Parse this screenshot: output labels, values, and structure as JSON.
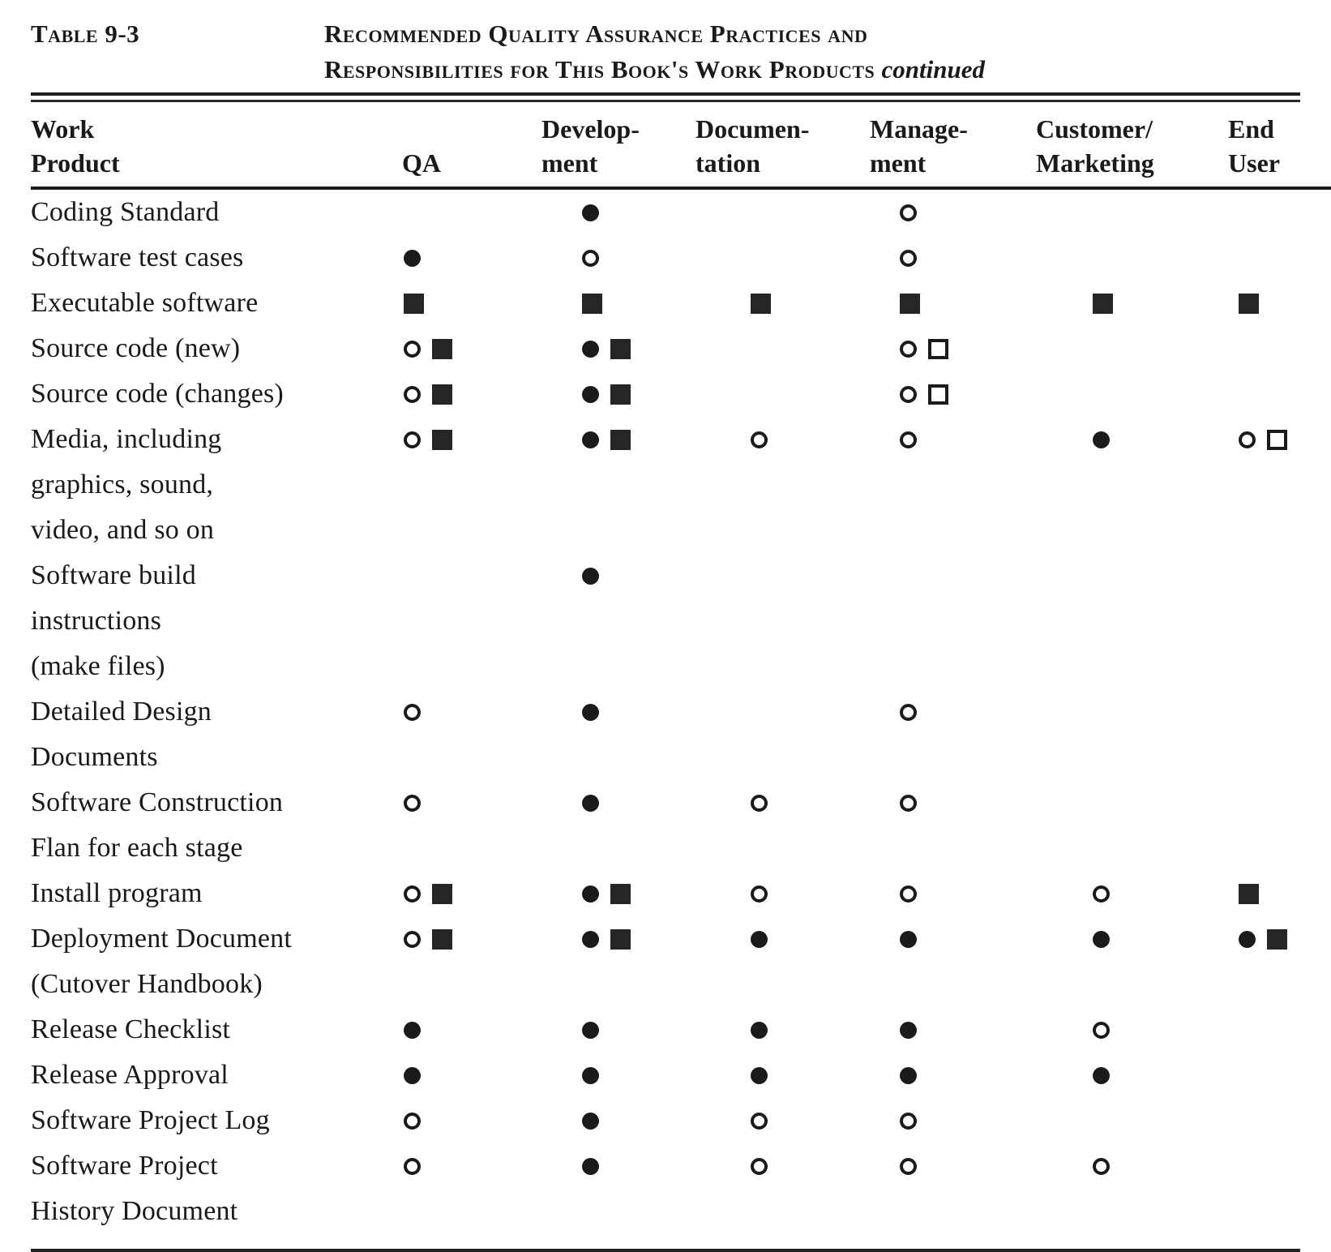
{
  "colors": {
    "ink": "#1a1a1a",
    "paper": "#ffffff"
  },
  "title": {
    "table_label": "Table 9-3",
    "line1": "Recommended Quality Assurance Practices and",
    "line2": "Responsibilities for This Book's Work Products",
    "continued": "continued"
  },
  "columns": [
    {
      "id": "work_product",
      "lines": [
        "Work",
        "Product"
      ]
    },
    {
      "id": "qa",
      "lines": [
        "QA"
      ]
    },
    {
      "id": "development",
      "lines": [
        "Develop-",
        "ment"
      ]
    },
    {
      "id": "documentation",
      "lines": [
        "Documen-",
        "tation"
      ]
    },
    {
      "id": "management",
      "lines": [
        "Manage-",
        "ment"
      ]
    },
    {
      "id": "customer_marketing",
      "lines": [
        "Customer/",
        "Marketing"
      ]
    },
    {
      "id": "end_user",
      "lines": [
        "End",
        "User"
      ]
    }
  ],
  "symbols": {
    "filled-circle": "black dot",
    "open-circle": "open circle",
    "filled-square": "black square",
    "open-square": "open square"
  },
  "rows": [
    {
      "product_lines": [
        "Coding Standard"
      ],
      "cells": [
        [],
        [
          "filled-circle"
        ],
        [],
        [
          "open-circle"
        ],
        [],
        []
      ]
    },
    {
      "product_lines": [
        "Software test cases"
      ],
      "cells": [
        [
          "filled-circle"
        ],
        [
          "open-circle"
        ],
        [],
        [
          "open-circle"
        ],
        [],
        []
      ]
    },
    {
      "product_lines": [
        "Executable software"
      ],
      "cells": [
        [
          "filled-square"
        ],
        [
          "filled-square"
        ],
        [
          "filled-square"
        ],
        [
          "filled-square"
        ],
        [
          "filled-square"
        ],
        [
          "filled-square"
        ]
      ]
    },
    {
      "product_lines": [
        "Source code (new)"
      ],
      "cells": [
        [
          "open-circle",
          "filled-square"
        ],
        [
          "filled-circle",
          "filled-square"
        ],
        [],
        [
          "open-circle",
          "open-square"
        ],
        [],
        []
      ]
    },
    {
      "product_lines": [
        "Source code (changes)"
      ],
      "cells": [
        [
          "open-circle",
          "filled-square"
        ],
        [
          "filled-circle",
          "filled-square"
        ],
        [],
        [
          "open-circle",
          "open-square"
        ],
        [],
        []
      ]
    },
    {
      "product_lines": [
        "Media, including",
        "graphics, sound,",
        "video, and so on"
      ],
      "cells": [
        [
          "open-circle",
          "filled-square"
        ],
        [
          "filled-circle",
          "filled-square"
        ],
        [
          "open-circle"
        ],
        [
          "open-circle"
        ],
        [
          "filled-circle"
        ],
        [
          "open-circle",
          "open-square"
        ]
      ]
    },
    {
      "product_lines": [
        "Software  build",
        "instructions",
        "(make files)"
      ],
      "cells": [
        [],
        [
          "filled-circle"
        ],
        [],
        [],
        [],
        []
      ]
    },
    {
      "product_lines": [
        "Detailed Design",
        "Documents"
      ],
      "cells": [
        [
          "open-circle"
        ],
        [
          "filled-circle"
        ],
        [],
        [
          "open-circle"
        ],
        [],
        []
      ]
    },
    {
      "product_lines": [
        "Software  Construction",
        "Flan for each stage"
      ],
      "cells": [
        [
          "open-circle"
        ],
        [
          "filled-circle"
        ],
        [
          "open-circle"
        ],
        [
          "open-circle"
        ],
        [],
        []
      ]
    },
    {
      "product_lines": [
        "Install program"
      ],
      "cells": [
        [
          "open-circle",
          "filled-square"
        ],
        [
          "filled-circle",
          "filled-square"
        ],
        [
          "open-circle"
        ],
        [
          "open-circle"
        ],
        [
          "open-circle"
        ],
        [
          "filled-square"
        ]
      ]
    },
    {
      "product_lines": [
        "Deployment Document",
        "(Cutover  Handbook)"
      ],
      "cells": [
        [
          "open-circle",
          "filled-square"
        ],
        [
          "filled-circle",
          "filled-square"
        ],
        [
          "filled-circle"
        ],
        [
          "filled-circle"
        ],
        [
          "filled-circle"
        ],
        [
          "filled-circle",
          "filled-square"
        ]
      ]
    },
    {
      "product_lines": [
        "Release  Checklist"
      ],
      "cells": [
        [
          "filled-circle"
        ],
        [
          "filled-circle"
        ],
        [
          "filled-circle"
        ],
        [
          "filled-circle"
        ],
        [
          "open-circle"
        ],
        []
      ]
    },
    {
      "product_lines": [
        "Release  Approval"
      ],
      "cells": [
        [
          "filled-circle"
        ],
        [
          "filled-circle"
        ],
        [
          "filled-circle"
        ],
        [
          "filled-circle"
        ],
        [
          "filled-circle"
        ],
        []
      ]
    },
    {
      "product_lines": [
        "Software Project Log"
      ],
      "cells": [
        [
          "open-circle"
        ],
        [
          "filled-circle"
        ],
        [
          "open-circle"
        ],
        [
          "open-circle"
        ],
        [],
        []
      ]
    },
    {
      "product_lines": [
        "Software Project",
        "History Document"
      ],
      "cells": [
        [
          "open-circle"
        ],
        [
          "filled-circle"
        ],
        [
          "open-circle"
        ],
        [
          "open-circle"
        ],
        [
          "open-circle"
        ],
        []
      ]
    }
  ]
}
